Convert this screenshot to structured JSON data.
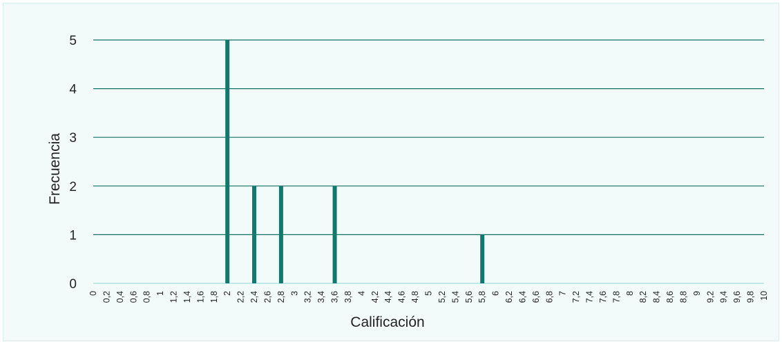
{
  "chart_data": {
    "type": "bar",
    "title": "",
    "xlabel": "Calificación",
    "ylabel": "Frecuencia",
    "ylim": [
      0,
      5
    ],
    "yticks": [
      "0",
      "1",
      "2",
      "3",
      "4",
      "5"
    ],
    "grid": true,
    "categories": [
      "0",
      "0,2",
      "0,4",
      "0,6",
      "0,8",
      "1",
      "1,2",
      "1,4",
      "1,6",
      "1,8",
      "2",
      "2,2",
      "2,4",
      "2,6",
      "2,8",
      "3",
      "3,2",
      "3,4",
      "3,6",
      "3,8",
      "4",
      "4,2",
      "4,4",
      "4,6",
      "4,8",
      "5",
      "5,2",
      "5,4",
      "5,6",
      "5,8",
      "6",
      "6,2",
      "6,4",
      "6,6",
      "6,8",
      "7",
      "7,2",
      "7,4",
      "7,6",
      "7,8",
      "8",
      "8,2",
      "8,4",
      "8,6",
      "8,8",
      "9",
      "9,2",
      "9,4",
      "9,6",
      "9,8",
      "10"
    ],
    "values": [
      0,
      0,
      0,
      0,
      0,
      0,
      0,
      0,
      0,
      0,
      5,
      0,
      2,
      0,
      2,
      0,
      0,
      0,
      2,
      0,
      0,
      0,
      0,
      0,
      0,
      0,
      0,
      0,
      0,
      1,
      0,
      0,
      0,
      0,
      0,
      0,
      0,
      0,
      0,
      0,
      0,
      0,
      0,
      0,
      0,
      0,
      0,
      0,
      0,
      0,
      0
    ],
    "colors": {
      "bar": "#0f7a6b",
      "grid": "#0f6f62",
      "axis": "#bfe9e4",
      "background": "#f2fbfa",
      "text": "#222222"
    }
  }
}
